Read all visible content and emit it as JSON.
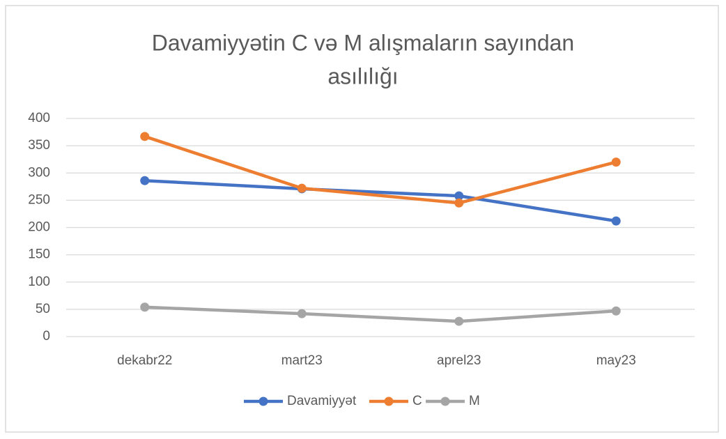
{
  "chart_data": {
    "type": "line",
    "title": [
      "Davamiyyətin C və M alışmaların sayından",
      "asılılığı"
    ],
    "categories": [
      "dekabr22",
      "mart23",
      "aprel23",
      "may23"
    ],
    "series": [
      {
        "name": "Davamiyyət",
        "color": "#4472c4",
        "values": [
          286,
          271,
          258,
          212
        ]
      },
      {
        "name": "C",
        "color": "#ed7d31",
        "values": [
          367,
          272,
          245,
          320
        ]
      },
      {
        "name": "M",
        "color": "#a5a5a5",
        "values": [
          54,
          42,
          28,
          47
        ]
      }
    ],
    "ylim": [
      0,
      400
    ],
    "yticks": [
      0,
      50,
      100,
      150,
      200,
      250,
      300,
      350,
      400
    ],
    "grid": true,
    "legend": "bottom"
  }
}
